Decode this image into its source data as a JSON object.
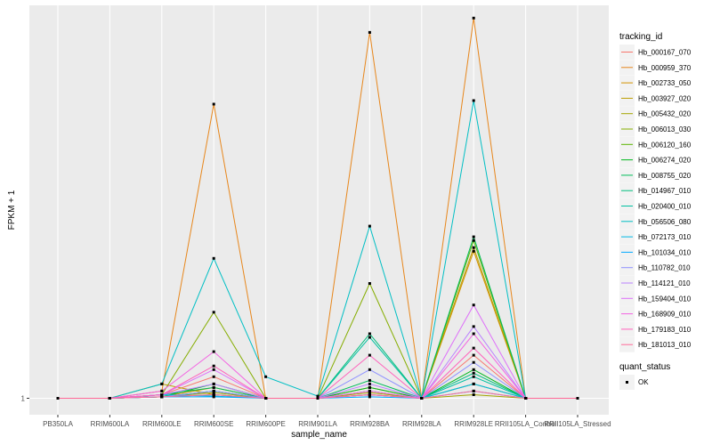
{
  "chart_data": {
    "type": "line",
    "xlabel": "sample_name",
    "ylabel": "FPKM + 1",
    "y_tick_labels": [
      "1"
    ],
    "x": [
      "PB350LA",
      "RRIM600LA",
      "RRIM600LE",
      "RRIM600SE",
      "RRIM600PE",
      "RRIM901LA",
      "RRIM928BA",
      "RRIM928LA",
      "RRIM928LE",
      "RRII105LA_Control",
      "RRII105LA_Stressed"
    ],
    "legend_title": "tracking_id",
    "point_legend_title": "quant_status",
    "point_legend_label": "OK",
    "series": [
      {
        "name": "Hb_000167_070",
        "color": "#F8766D",
        "values": [
          1,
          1,
          1.05,
          1.3,
          1,
          1,
          1.1,
          1,
          1.6,
          1,
          1
        ]
      },
      {
        "name": "Hb_000959_370",
        "color": "#E7861B",
        "values": [
          1,
          1,
          1.1,
          5.1,
          1,
          1,
          6.1,
          1,
          6.3,
          1,
          1
        ]
      },
      {
        "name": "Hb_002733_050",
        "color": "#D39200",
        "values": [
          1,
          1,
          1.02,
          1.15,
          1,
          1,
          1.15,
          1,
          3.05,
          1,
          1
        ]
      },
      {
        "name": "Hb_003927_020",
        "color": "#BC9E00",
        "values": [
          1,
          1,
          1.2,
          1.05,
          1,
          1,
          1.1,
          1,
          3.1,
          1,
          1
        ]
      },
      {
        "name": "Hb_005432_020",
        "color": "#A3A500",
        "values": [
          1,
          1,
          1.02,
          1.08,
          1,
          1,
          1.08,
          1,
          1.05,
          1,
          1
        ]
      },
      {
        "name": "Hb_006013_030",
        "color": "#85AD00",
        "values": [
          1,
          1,
          1.05,
          2.2,
          1,
          1,
          2.6,
          1,
          1.2,
          1,
          1
        ]
      },
      {
        "name": "Hb_006120_160",
        "color": "#5BB300",
        "values": [
          1,
          1,
          1.02,
          1.1,
          1,
          1,
          1.05,
          1,
          3.2,
          1,
          1
        ]
      },
      {
        "name": "Hb_006274_020",
        "color": "#00B81F",
        "values": [
          1,
          1,
          1.02,
          1.2,
          1,
          1,
          1.15,
          1,
          1.4,
          1,
          1
        ]
      },
      {
        "name": "Hb_008755_020",
        "color": "#00BC59",
        "values": [
          1,
          1,
          1.05,
          1.15,
          1,
          1,
          1.25,
          1,
          3.25,
          1,
          1
        ]
      },
      {
        "name": "Hb_014967_010",
        "color": "#00BF7D",
        "values": [
          1,
          1,
          1.02,
          1.1,
          1,
          1,
          1.9,
          1,
          1.35,
          1,
          1
        ]
      },
      {
        "name": "Hb_020400_010",
        "color": "#00C0A1",
        "values": [
          1,
          1,
          1.02,
          1.05,
          1,
          1,
          1.85,
          1,
          1.3,
          1,
          1
        ]
      },
      {
        "name": "Hb_056506_080",
        "color": "#00BFC4",
        "values": [
          1,
          1,
          1.2,
          2.95,
          1.3,
          1.03,
          3.4,
          1,
          5.15,
          1,
          1
        ]
      },
      {
        "name": "Hb_072173_010",
        "color": "#00B8E5",
        "values": [
          1,
          1,
          1.05,
          1.03,
          1,
          1,
          1.05,
          1,
          1.2,
          1,
          1
        ]
      },
      {
        "name": "Hb_101034_010",
        "color": "#00A9FF",
        "values": [
          1,
          1,
          1.02,
          1.02,
          1,
          1,
          1.02,
          1,
          1.1,
          1,
          1
        ]
      },
      {
        "name": "Hb_110782_010",
        "color": "#8F91FF",
        "values": [
          1,
          1,
          1.02,
          1.1,
          1,
          1,
          1.4,
          1,
          1.5,
          1,
          1
        ]
      },
      {
        "name": "Hb_114121_010",
        "color": "#BB81FF",
        "values": [
          1,
          1,
          1.05,
          1.2,
          1,
          1,
          1.2,
          1,
          2.0,
          1,
          1
        ]
      },
      {
        "name": "Hb_159404_010",
        "color": "#DE70F9",
        "values": [
          1,
          1,
          1.05,
          1.4,
          1,
          1,
          1.1,
          1,
          2.3,
          1,
          1
        ]
      },
      {
        "name": "Hb_168909_010",
        "color": "#F364E2",
        "values": [
          1,
          1,
          1.1,
          1.65,
          1,
          1,
          1.05,
          1,
          1.9,
          1,
          1
        ]
      },
      {
        "name": "Hb_179183_010",
        "color": "#FF62BC",
        "values": [
          1,
          1,
          1.05,
          1.45,
          1,
          1,
          1.6,
          1,
          1.7,
          1,
          1
        ]
      },
      {
        "name": "Hb_181013_010",
        "color": "#FF6A98",
        "values": [
          1,
          1,
          1.02,
          1.05,
          1,
          1,
          1.05,
          1,
          1.1,
          1,
          1
        ]
      }
    ]
  }
}
